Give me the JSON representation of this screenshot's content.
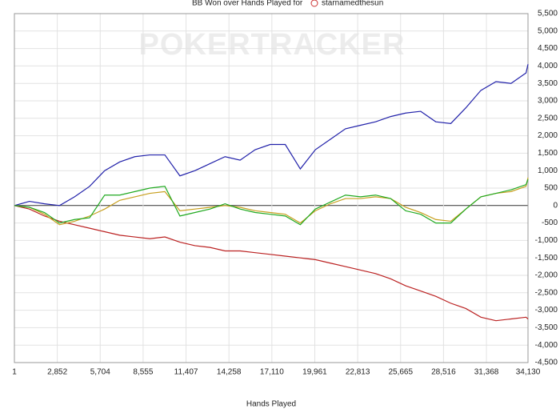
{
  "chart_data": {
    "type": "line",
    "title": "BB Won over Hands Played for",
    "player": "starnamedthesun",
    "watermark": "POKERTRACKER",
    "x_label": "Hands Played",
    "x": [
      1,
      1000,
      2000,
      3000,
      4000,
      5000,
      6000,
      7000,
      8000,
      9000,
      10000,
      11000,
      12000,
      13000,
      14000,
      15000,
      16000,
      17000,
      18000,
      19000,
      20000,
      21000,
      22000,
      23000,
      24000,
      25000,
      26000,
      27000,
      28000,
      29000,
      30000,
      31000,
      32000,
      33000,
      34000,
      34130
    ],
    "xlim": [
      1,
      34130
    ],
    "xticks": [
      1,
      {
        "value": 2852,
        "label": "2,852"
      },
      {
        "value": 5704,
        "label": "5,704"
      },
      {
        "value": 8555,
        "label": "8,555"
      },
      {
        "value": 11407,
        "label": "11,407"
      },
      {
        "value": 14258,
        "label": "14,258"
      },
      {
        "value": 17110,
        "label": "17,110"
      },
      {
        "value": 19961,
        "label": "19,961"
      },
      {
        "value": 22813,
        "label": "22,813"
      },
      {
        "value": 25665,
        "label": "25,665"
      },
      {
        "value": 28516,
        "label": "28,516"
      },
      {
        "value": 31368,
        "label": "31,368"
      },
      {
        "value": 34130,
        "label": "34,130"
      }
    ],
    "ylim": [
      -4500,
      5500
    ],
    "yticks": [
      {
        "value": -4500,
        "label": "-4,500"
      },
      {
        "value": -4000,
        "label": "-4,000"
      },
      {
        "value": -3500,
        "label": "-3,500"
      },
      {
        "value": -3000,
        "label": "-3,000"
      },
      {
        "value": -2500,
        "label": "-2,500"
      },
      {
        "value": -2000,
        "label": "-2,000"
      },
      {
        "value": -1500,
        "label": "-1,500"
      },
      {
        "value": -1000,
        "label": "-1,000"
      },
      -500,
      0,
      500,
      {
        "value": 1000,
        "label": "1,000"
      },
      {
        "value": 1500,
        "label": "1,500"
      },
      {
        "value": 2000,
        "label": "2,000"
      },
      {
        "value": 2500,
        "label": "2,500"
      },
      {
        "value": 3000,
        "label": "3,000"
      },
      {
        "value": 3500,
        "label": "3,500"
      },
      {
        "value": 4000,
        "label": "4,000"
      },
      {
        "value": 4500,
        "label": "4,500"
      },
      {
        "value": 5000,
        "label": "5,000"
      },
      {
        "value": 5500,
        "label": "5,500"
      }
    ],
    "grid": true,
    "series": [
      {
        "color": "#2222aa",
        "values": [
          0,
          120,
          50,
          0,
          250,
          550,
          1000,
          1250,
          1400,
          1450,
          1450,
          850,
          1000,
          1200,
          1400,
          1300,
          1600,
          1750,
          1750,
          1050,
          1600,
          1900,
          2200,
          2300,
          2400,
          2550,
          2650,
          2700,
          2400,
          2350,
          2800,
          3300,
          3550,
          3500,
          3800,
          4050
        ]
      },
      {
        "color": "#bb2222",
        "values": [
          0,
          -100,
          -300,
          -450,
          -550,
          -650,
          -750,
          -850,
          -900,
          -950,
          -900,
          -1050,
          -1150,
          -1200,
          -1300,
          -1300,
          -1350,
          -1400,
          -1450,
          -1500,
          -1550,
          -1650,
          -1750,
          -1850,
          -1950,
          -2100,
          -2300,
          -2450,
          -2600,
          -2800,
          -2950,
          -3200,
          -3300,
          -3250,
          -3200,
          -3250
        ]
      },
      {
        "color": "#c8a020",
        "values": [
          0,
          -50,
          -250,
          -550,
          -450,
          -300,
          -100,
          150,
          250,
          350,
          400,
          -150,
          -100,
          -50,
          0,
          -50,
          -150,
          -200,
          -250,
          -500,
          -150,
          50,
          200,
          200,
          250,
          200,
          -50,
          -200,
          -400,
          -450,
          -100,
          250,
          350,
          400,
          550,
          800
        ]
      },
      {
        "color": "#22aa22",
        "values": [
          0,
          -50,
          -200,
          -500,
          -400,
          -350,
          300,
          300,
          400,
          500,
          550,
          -300,
          -200,
          -100,
          50,
          -100,
          -200,
          -250,
          -300,
          -550,
          -100,
          100,
          300,
          250,
          300,
          200,
          -150,
          -250,
          -500,
          -500,
          -100,
          250,
          350,
          450,
          600,
          750
        ]
      }
    ]
  }
}
